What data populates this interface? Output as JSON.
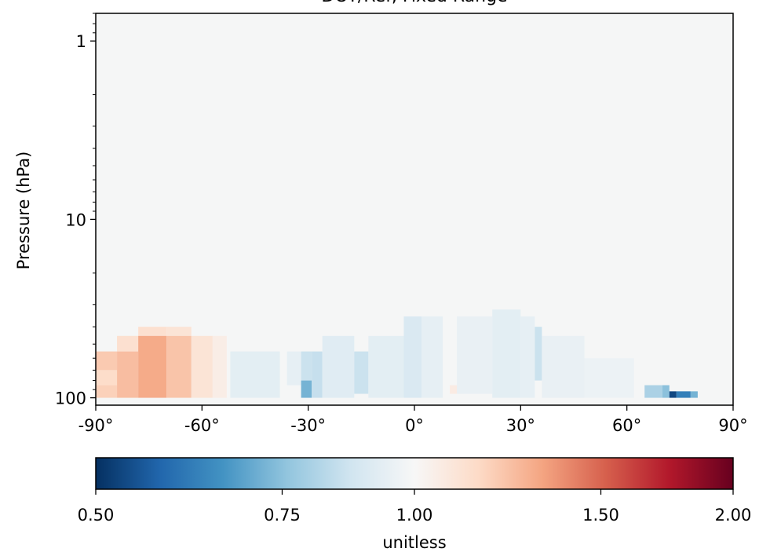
{
  "chart_data": {
    "type": "heatmap",
    "title": "DOY/Ref, Fixed Range",
    "ylabel": "Pressure (hPa)",
    "xlabel": "",
    "x_range": [
      -90,
      90
    ],
    "y_range": [
      0.7,
      110
    ],
    "y_scale": "log",
    "y_inverted": true,
    "x_ticks": [
      -90,
      -60,
      -30,
      0,
      30,
      60,
      90
    ],
    "x_tick_labels": [
      "-90°",
      "-60°",
      "-30°",
      "0°",
      "30°",
      "60°",
      "90°"
    ],
    "y_ticks": [
      1,
      10,
      100
    ],
    "y_tick_labels": [
      "1",
      "10",
      "100"
    ],
    "background_value": 1.0,
    "cells_note": "lat bounds in degrees, pressure bounds in hPa, value unitless ratio",
    "cells": [
      {
        "lat": [
          -90,
          -84
        ],
        "p": [
          55,
          70
        ],
        "v": 1.2
      },
      {
        "lat": [
          -90,
          -84
        ],
        "p": [
          70,
          85
        ],
        "v": 1.14
      },
      {
        "lat": [
          -90,
          -84
        ],
        "p": [
          85,
          100
        ],
        "v": 1.18
      },
      {
        "lat": [
          -84,
          -78
        ],
        "p": [
          45,
          55
        ],
        "v": 1.12
      },
      {
        "lat": [
          -84,
          -78
        ],
        "p": [
          55,
          100
        ],
        "v": 1.24
      },
      {
        "lat": [
          -78,
          -70
        ],
        "p": [
          40,
          45
        ],
        "v": 1.12
      },
      {
        "lat": [
          -78,
          -70
        ],
        "p": [
          45,
          100
        ],
        "v": 1.3
      },
      {
        "lat": [
          -70,
          -63
        ],
        "p": [
          40,
          45
        ],
        "v": 1.1
      },
      {
        "lat": [
          -70,
          -63
        ],
        "p": [
          45,
          100
        ],
        "v": 1.22
      },
      {
        "lat": [
          -63,
          -57
        ],
        "p": [
          45,
          100
        ],
        "v": 1.1
      },
      {
        "lat": [
          -57,
          -53
        ],
        "p": [
          45,
          100
        ],
        "v": 1.05
      },
      {
        "lat": [
          -52,
          -38
        ],
        "p": [
          55,
          100
        ],
        "v": 0.93
      },
      {
        "lat": [
          -36,
          -32
        ],
        "p": [
          55,
          85
        ],
        "v": 0.94
      },
      {
        "lat": [
          -32,
          -29
        ],
        "p": [
          55,
          80
        ],
        "v": 0.86
      },
      {
        "lat": [
          -32,
          -29
        ],
        "p": [
          80,
          100
        ],
        "v": 0.72
      },
      {
        "lat": [
          -29,
          -26
        ],
        "p": [
          55,
          100
        ],
        "v": 0.85
      },
      {
        "lat": [
          -26,
          -17
        ],
        "p": [
          45,
          100
        ],
        "v": 0.92
      },
      {
        "lat": [
          -17,
          -13
        ],
        "p": [
          55,
          95
        ],
        "v": 0.86
      },
      {
        "lat": [
          -13,
          -3
        ],
        "p": [
          45,
          100
        ],
        "v": 0.93
      },
      {
        "lat": [
          -3,
          2
        ],
        "p": [
          35,
          100
        ],
        "v": 0.9
      },
      {
        "lat": [
          2,
          8
        ],
        "p": [
          35,
          100
        ],
        "v": 0.94
      },
      {
        "lat": [
          10,
          14
        ],
        "p": [
          85,
          95
        ],
        "v": 1.06
      },
      {
        "lat": [
          12,
          22
        ],
        "p": [
          35,
          95
        ],
        "v": 0.95
      },
      {
        "lat": [
          22,
          30
        ],
        "p": [
          32,
          100
        ],
        "v": 0.93
      },
      {
        "lat": [
          30,
          34
        ],
        "p": [
          35,
          100
        ],
        "v": 0.94
      },
      {
        "lat": [
          34,
          36
        ],
        "p": [
          40,
          80
        ],
        "v": 0.86
      },
      {
        "lat": [
          36,
          48
        ],
        "p": [
          45,
          100
        ],
        "v": 0.95
      },
      {
        "lat": [
          48,
          62
        ],
        "p": [
          60,
          100
        ],
        "v": 0.96
      },
      {
        "lat": [
          65,
          70
        ],
        "p": [
          85,
          100
        ],
        "v": 0.8
      },
      {
        "lat": [
          70,
          72
        ],
        "p": [
          85,
          100
        ],
        "v": 0.75
      },
      {
        "lat": [
          72,
          74
        ],
        "p": [
          92,
          100
        ],
        "v": 0.53
      },
      {
        "lat": [
          74,
          78
        ],
        "p": [
          92,
          100
        ],
        "v": 0.62
      },
      {
        "lat": [
          78,
          80
        ],
        "p": [
          92,
          100
        ],
        "v": 0.72
      }
    ],
    "colorbar": {
      "colormap": "RdBu_r",
      "min": 0.5,
      "max": 2.0,
      "scale": "log",
      "ticks": [
        0.5,
        0.75,
        1.0,
        1.5,
        2.0
      ],
      "tick_labels": [
        "0.50",
        "0.75",
        "1.00",
        "1.50",
        "2.00"
      ],
      "label": "unitless"
    }
  }
}
